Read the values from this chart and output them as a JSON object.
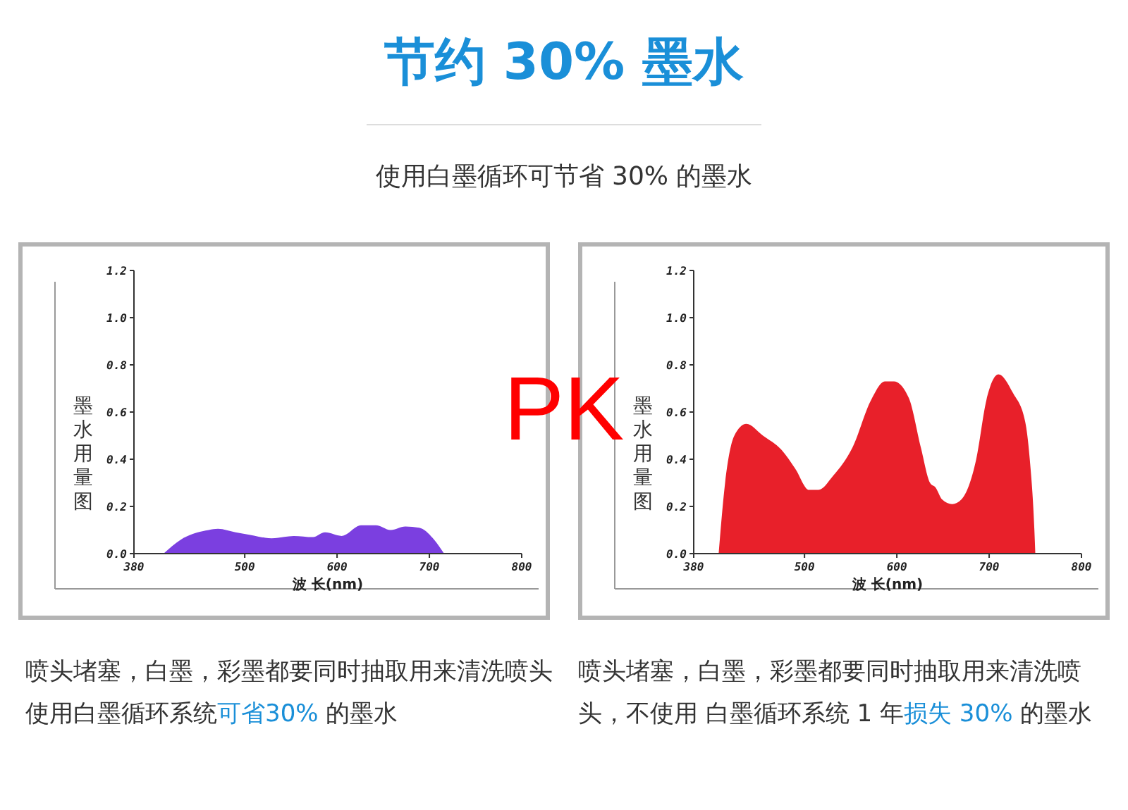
{
  "chart_data": [
    {
      "type": "area",
      "title": "节约 30% 墨水",
      "subtitle": "使用白墨循环可节省 30% 的墨水",
      "xlabel": "波 长(nm)",
      "ylabel": "墨水用量图",
      "annotations": [
        "PK",
        "喷头堵塞，白墨，彩墨都要同时抽取用来清洗喷头使用白墨循环系统",
        "可省30%",
        " 的墨水"
      ],
      "series": [
        {
          "color": "#7b3fe0",
          "x": [
            412,
            431,
            461,
            471,
            490,
            505,
            529,
            553,
            574,
            587,
            605,
            626,
            642,
            658,
            674,
            689,
            705,
            716
          ],
          "values": [
            0,
            0.06,
            0.1,
            0.105,
            0.09,
            0.08,
            0.065,
            0.075,
            0.07,
            0.09,
            0.075,
            0.12,
            0.12,
            0.1,
            0.115,
            0.11,
            0.06,
            0
          ]
        }
      ],
      "xlim": [
        380,
        800
      ],
      "xticks": [
        380,
        500,
        600,
        700,
        800
      ],
      "ylim": [
        0,
        1.2
      ],
      "yticks": [
        {
          "value": 0,
          "label": "0.0"
        },
        {
          "value": 0.2,
          "label": "0.2"
        },
        {
          "value": 0.4,
          "label": "0.4"
        },
        {
          "value": 0.6,
          "label": "0.6"
        },
        {
          "value": 0.8,
          "label": "0.8"
        },
        {
          "value": 1,
          "label": "1.0"
        },
        {
          "value": 1.2,
          "label": "1.2"
        }
      ]
    },
    {
      "type": "area",
      "xlabel": "波 长(nm)",
      "ylabel": "墨水用量图",
      "annotations": [
        "喷头堵塞，白墨，彩墨都要同时抽取用来清洗喷头，不使用 白墨循环系统 1 年",
        "损失 30%",
        " 的墨水"
      ],
      "series": [
        {
          "color": "#e8202a",
          "x": [
            407,
            414,
            424,
            437,
            455,
            475,
            490,
            505,
            515,
            531,
            552,
            572,
            587,
            597,
            613,
            626,
            636,
            642,
            649,
            660,
            670,
            686,
            697,
            710,
            726,
            739,
            744,
            749,
            750
          ],
          "values": [
            0,
            0.3,
            0.5,
            0.55,
            0.5,
            0.44,
            0.36,
            0.27,
            0.27,
            0.33,
            0.45,
            0.65,
            0.73,
            0.73,
            0.66,
            0.45,
            0.3,
            0.28,
            0.23,
            0.21,
            0.23,
            0.4,
            0.65,
            0.76,
            0.68,
            0.56,
            0.4,
            0.1,
            0
          ]
        }
      ],
      "xlim": [
        380,
        800
      ],
      "xticks": [
        380,
        500,
        600,
        700,
        800
      ],
      "ylim": [
        0,
        1.2
      ],
      "yticks": [
        {
          "value": 0,
          "label": "0.0"
        },
        {
          "value": 0.2,
          "label": "0.2"
        },
        {
          "value": 0.4,
          "label": "0.4"
        },
        {
          "value": 0.6,
          "label": "0.6"
        },
        {
          "value": 0.8,
          "label": "0.8"
        },
        {
          "value": 1,
          "label": "1.0"
        },
        {
          "value": 1.2,
          "label": "1.2"
        }
      ]
    }
  ]
}
